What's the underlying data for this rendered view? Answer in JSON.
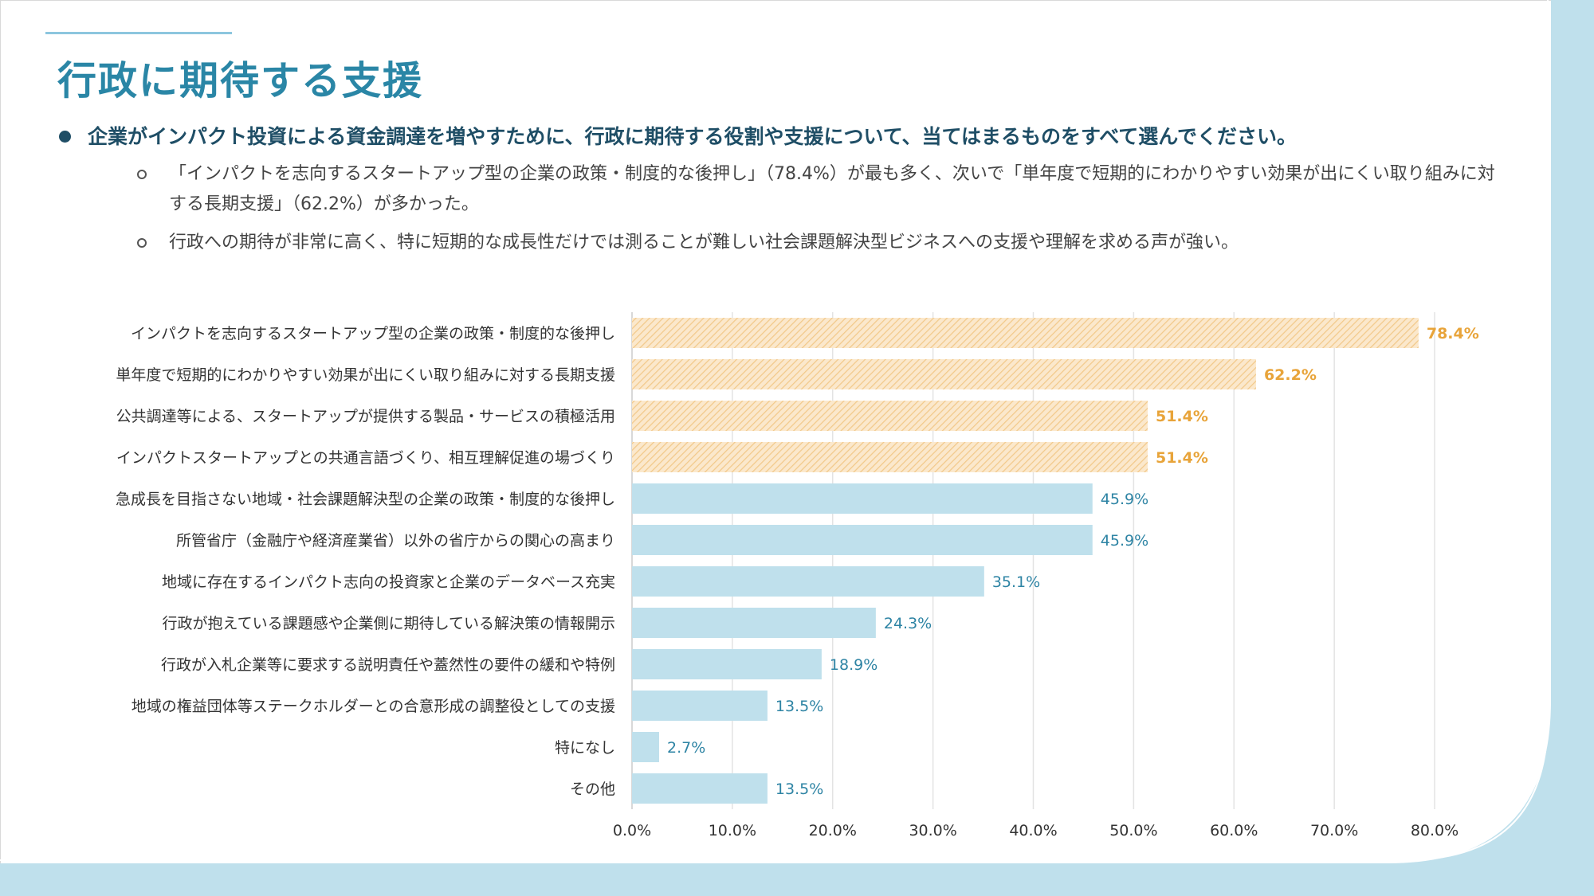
{
  "slide": {
    "title": "行政に期待する支援",
    "question": "企業がインパクト投資による資金調達を増やすために、行政に期待する役割や支援について、当てはまるものをすべて選んでください。",
    "findings": [
      "「インパクトを志向するスタートアップ型の企業の政策・制度的な後押し」（78.4%）が最も多く、次いで「単年度で短期的にわかりやすい効果が出にくい取り組みに対する長期支援」（62.2%）が多かった。",
      "行政への期待が非常に高く、特に短期的な成長性だけでは測ることが難しい社会課題解決型ビジネスへの支援や理解を求める声が強い。"
    ]
  },
  "colors": {
    "accent": "#2a86a6",
    "highlight_bar": "#f2c98a",
    "highlight_label": "#e8a43a",
    "normal_bar": "#bfe0ec",
    "normal_label": "#2e84a4",
    "frame": "#bfe0ec"
  },
  "chart_data": {
    "type": "bar",
    "orientation": "horizontal",
    "categories": [
      "インパクトを志向するスタートアップ型の企業の政策・制度的な後押し",
      "単年度で短期的にわかりやすい効果が出にくい取り組みに対する長期支援",
      "公共調達等による、スタートアップが提供する製品・サービスの積極活用",
      "インパクトスタートアップとの共通言語づくり、相互理解促進の場づくり",
      "急成長を目指さない地域・社会課題解決型の企業の政策・制度的な後押し",
      "所管省庁（金融庁や経済産業省）以外の省庁からの関心の高まり",
      "地域に存在するインパクト志向の投資家と企業のデータベース充実",
      "行政が抱えている課題感や企業側に期待している解決策の情報開示",
      "行政が入札企業等に要求する説明責任や蓋然性の要件の緩和や特例",
      "地域の権益団体等ステークホルダーとの合意形成の調整役としての支援",
      "特になし",
      "その他"
    ],
    "values": [
      78.4,
      62.2,
      51.4,
      51.4,
      45.9,
      45.9,
      35.1,
      24.3,
      18.9,
      13.5,
      2.7,
      13.5
    ],
    "value_labels": [
      "78.4%",
      "62.2%",
      "51.4%",
      "51.4%",
      "45.9%",
      "45.9%",
      "35.1%",
      "24.3%",
      "18.9%",
      "13.5%",
      "2.7%",
      "13.5%"
    ],
    "highlighted": [
      true,
      true,
      true,
      true,
      false,
      false,
      false,
      false,
      false,
      false,
      false,
      false
    ],
    "xlim": [
      0,
      80
    ],
    "xticks": [
      "0.0%",
      "10.0%",
      "20.0%",
      "30.0%",
      "40.0%",
      "50.0%",
      "60.0%",
      "70.0%",
      "80.0%"
    ],
    "grid": true,
    "title": "",
    "xlabel": "",
    "ylabel": ""
  }
}
